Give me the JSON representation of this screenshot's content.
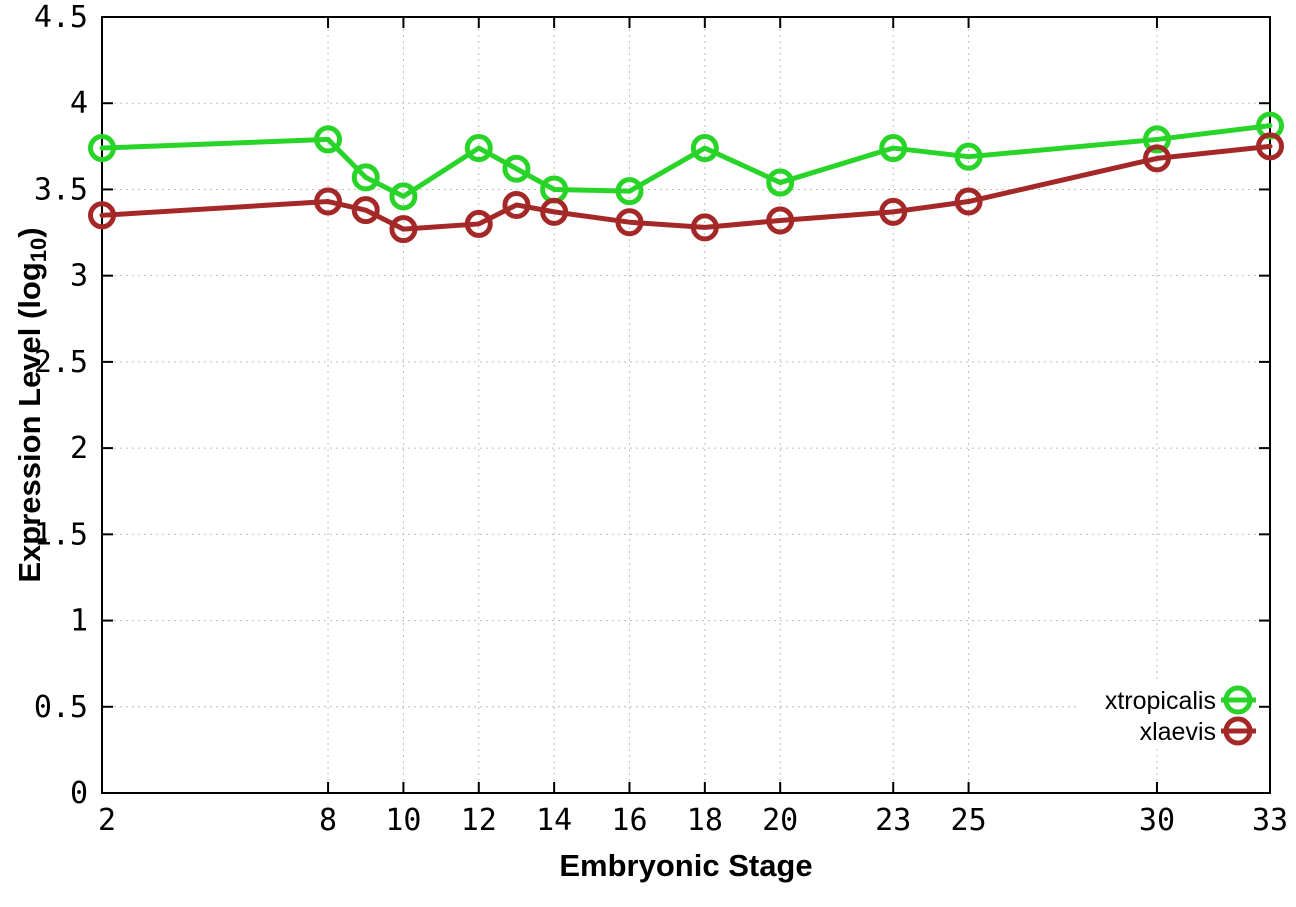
{
  "page": {
    "background": "#ffffff"
  },
  "chart_data": {
    "type": "line",
    "title": "",
    "xlabel": "Embryonic Stage",
    "ylabel": "Expression Level (log10)",
    "ylabel_parts": {
      "main": "Expression Level (log",
      "sub": "10",
      "close": ")"
    },
    "x": [
      2,
      8,
      9,
      10,
      12,
      13,
      14,
      16,
      18,
      20,
      23,
      25,
      30,
      33
    ],
    "series": [
      {
        "name": "xtropicalis",
        "color": "#28d428",
        "values": [
          3.74,
          3.79,
          3.57,
          3.46,
          3.74,
          3.62,
          3.5,
          3.49,
          3.74,
          3.54,
          3.74,
          3.69,
          3.79,
          3.87
        ]
      },
      {
        "name": "xlaevis",
        "color": "#a52828",
        "values": [
          3.35,
          3.43,
          3.38,
          3.27,
          3.3,
          3.41,
          3.37,
          3.31,
          3.28,
          3.32,
          3.37,
          3.43,
          3.68,
          3.75
        ]
      }
    ],
    "xlim": [
      2,
      33
    ],
    "ylim": [
      0,
      4.5
    ],
    "xticks": [
      2,
      8,
      10,
      12,
      14,
      16,
      18,
      20,
      23,
      25,
      30,
      33
    ],
    "xtick_labels": [
      "2",
      "8",
      "10",
      "12",
      "14",
      "16",
      "18",
      "20",
      "23",
      "25",
      "30",
      "33"
    ],
    "yticks": [
      0,
      0.5,
      1,
      1.5,
      2,
      2.5,
      3,
      3.5,
      4,
      4.5
    ],
    "ytick_labels": [
      "0",
      "0.5",
      "1",
      "1.5",
      "2",
      "2.5",
      "3",
      "3.5",
      "4",
      "4.5"
    ],
    "grid": true,
    "grid_color": "#bfbfbf",
    "border_color": "#000000",
    "legend_position": "bottom-right"
  }
}
